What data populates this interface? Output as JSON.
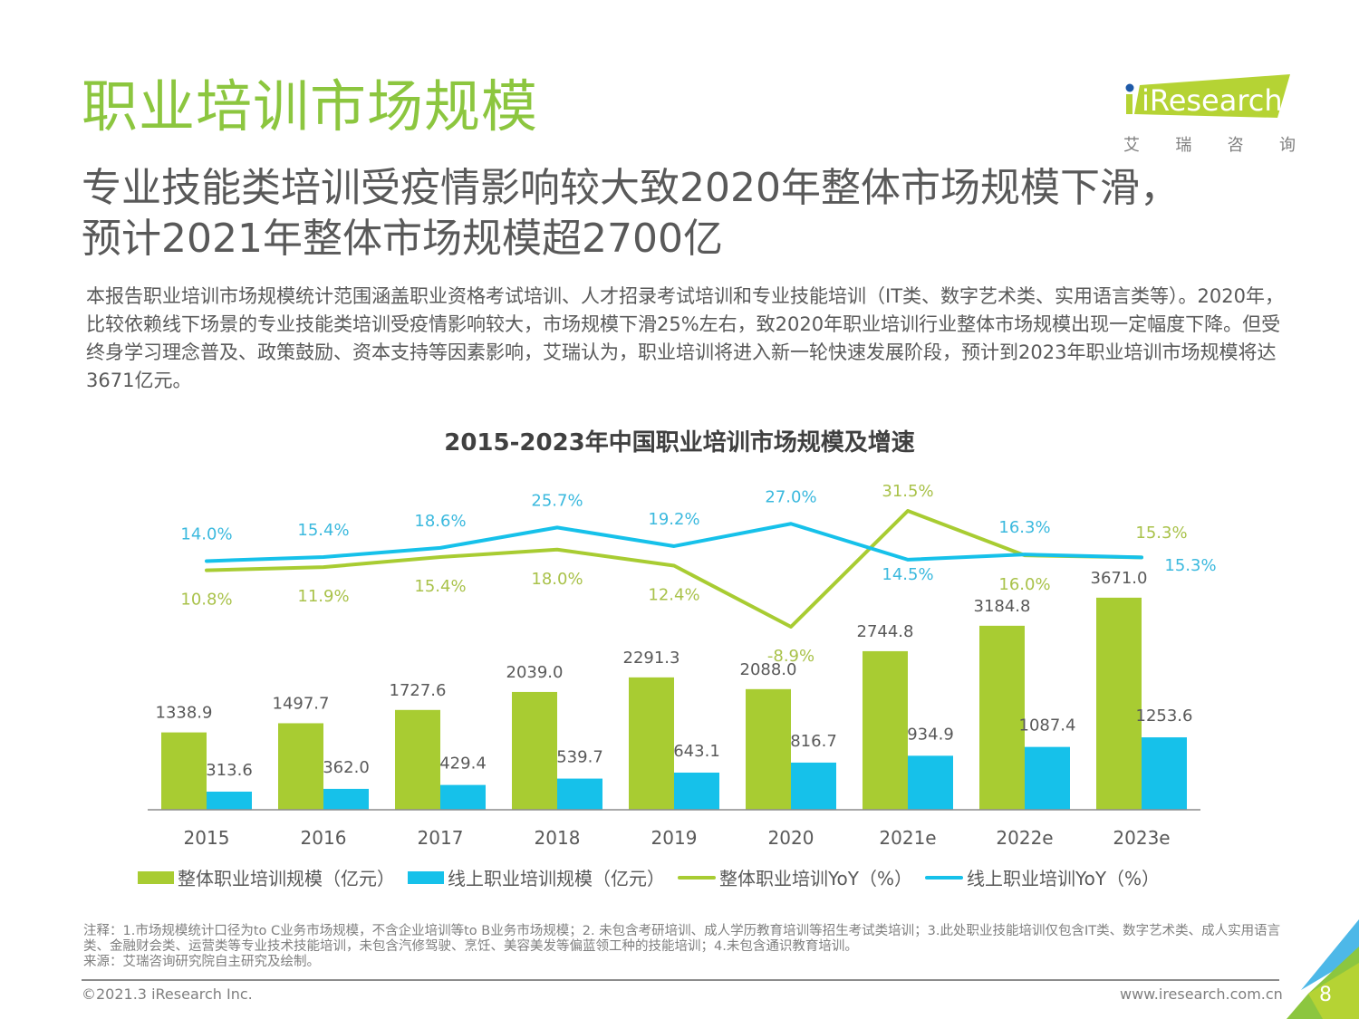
{
  "header": {
    "title": "职业培训市场规模",
    "subtitle_line1": "专业技能类培训受疫情影响较大致2020年整体市场规模下滑，",
    "subtitle_line2": "预计2021年整体市场规模超2700亿",
    "logo_text": "iResearch",
    "logo_cn": [
      "艾",
      "瑞",
      "咨",
      "询"
    ]
  },
  "body_text": "本报告职业培训市场规模统计范围涵盖职业资格考试培训、人才招录考试培训和专业技能培训（IT类、数字艺术类、实用语言类等）。2020年，比较依赖线下场景的专业技能类培训受疫情影响较大，市场规模下滑25%左右，致2020年职业培训行业整体市场规模出现一定幅度下降。但受终身学习理念普及、政策鼓励、资本支持等因素影响，艾瑞认为，职业培训将进入新一轮快速发展阶段，预计到2023年职业培训市场规模将达3671亿元。",
  "colors": {
    "green": "#a8cc32",
    "blue": "#16c1ea",
    "green_label": "#a9c24a",
    "blue_label": "#3bb9de",
    "title_green": "#8cc63f"
  },
  "chart_data": {
    "type": "bar",
    "title": "2015-2023年中国职业培训市场规模及增速",
    "categories": [
      "2015",
      "2016",
      "2017",
      "2018",
      "2019",
      "2020",
      "2021e",
      "2022e",
      "2023e"
    ],
    "series": [
      {
        "name": "整体职业培训规模（亿元）",
        "type": "bar",
        "axis": "left",
        "values": [
          1338.9,
          1497.7,
          1727.6,
          2039.0,
          2291.3,
          2088.0,
          2744.8,
          3184.8,
          3671.0
        ],
        "labels": [
          "1338.9",
          "1497.7",
          "1727.6",
          "2039.0",
          "2291.3",
          "2088.0",
          "2744.8",
          "3184.8",
          "3671.0"
        ]
      },
      {
        "name": "线上职业培训规模（亿元）",
        "type": "bar",
        "axis": "left",
        "values": [
          313.6,
          362.0,
          429.4,
          539.7,
          643.1,
          816.7,
          934.9,
          1087.4,
          1253.6
        ],
        "labels": [
          "313.6",
          "362.0",
          "429.4",
          "539.7",
          "643.1",
          "816.7",
          "934.9",
          "1087.4",
          "1253.6"
        ]
      },
      {
        "name": "整体职业培训YoY（%）",
        "type": "line",
        "axis": "right",
        "values": [
          10.8,
          11.9,
          15.4,
          18.0,
          12.4,
          -8.9,
          31.5,
          16.0,
          15.3
        ],
        "labels": [
          "10.8%",
          "11.9%",
          "15.4%",
          "18.0%",
          "12.4%",
          "-8.9%",
          "31.5%",
          "16.0%",
          "15.3%"
        ]
      },
      {
        "name": "线上职业培训YoY（%）",
        "type": "line",
        "axis": "right",
        "values": [
          14.0,
          15.4,
          18.6,
          25.7,
          19.2,
          27.0,
          14.5,
          16.3,
          15.3
        ],
        "labels": [
          "14.0%",
          "15.4%",
          "18.6%",
          "25.7%",
          "19.2%",
          "27.0%",
          "14.5%",
          "16.3%",
          "15.3%"
        ]
      }
    ],
    "xlabel": "",
    "ylabel": "",
    "ylim": [
      0,
      3700
    ],
    "y2lim": [
      -30,
      100
    ],
    "grid": false,
    "legend": "bottom"
  },
  "notes": {
    "line1": "注释：1.市场规模统计口径为to C业务市场规模，不含企业培训等to B业务市场规模；2. 未包含考研培训、成人学历教育培训等招生考试类培训；3.此处职业技能培训仅包含IT类、数字艺术类、成人实用语言类、金融财会类、运营类等专业技术技能培训，未包含汽修驾驶、烹饪、美容美发等偏蓝领工种的技能培训；4.未包含通识教育培训。",
    "source": "来源：艾瑞咨询研究院自主研究及绘制。"
  },
  "footer": {
    "copyright": "©2021.3 iResearch Inc.",
    "website": "www.iresearch.com.cn",
    "page_number": "8"
  }
}
